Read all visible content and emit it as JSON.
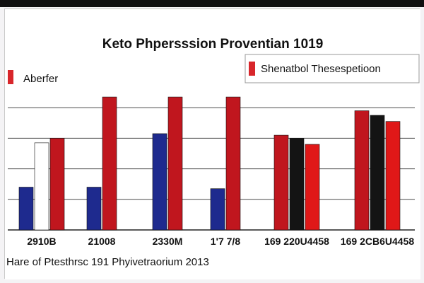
{
  "chart_data": {
    "type": "bar",
    "title": "Keto Phpersssion Proventian 1019",
    "xlabel": "Hare of Ptesthrsc 191 Phyivetraorium 2013",
    "ylabel": "",
    "categories": [
      "2910B",
      "21008",
      "2330M",
      "1'7 7/8",
      "169 220U4458",
      "169 2CB6U4458"
    ],
    "ylim": [
      0,
      100
    ],
    "grid": true,
    "legend_position": "top",
    "series": [
      {
        "name": "Aberfer",
        "color": "#1e2a8e",
        "values": [
          28,
          28,
          63,
          27,
          0,
          0
        ]
      },
      {
        "name": "",
        "color": "#ffffff",
        "values": [
          57,
          0,
          0,
          0,
          0,
          0
        ]
      },
      {
        "name": "",
        "color": "#c0161e",
        "values": [
          60,
          87,
          87,
          87,
          62,
          78
        ]
      },
      {
        "name": "",
        "color": "#141414",
        "values": [
          0,
          0,
          0,
          0,
          60,
          75
        ]
      },
      {
        "name": "Shenatbol Thesespetioon",
        "color": "#e01818",
        "values": [
          0,
          0,
          0,
          0,
          56,
          71
        ]
      }
    ]
  }
}
